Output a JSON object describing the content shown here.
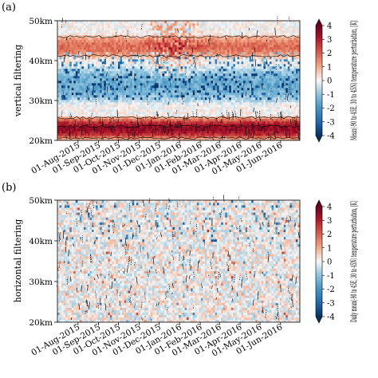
{
  "chart_data": [
    {
      "type": "heatmap",
      "panel_label": "(a)",
      "ylabel": "vertical filtering",
      "y_ticks": [
        "20km",
        "30km",
        "40km",
        "50km"
      ],
      "y_values_km": [
        20,
        30,
        40,
        50
      ],
      "x_ticks": [
        "01-Aug-2015",
        "01-Sep-2015",
        "01-Oct-2015",
        "01-Nov-2015",
        "01-Dec-2015",
        "01-Jan-2016",
        "01-Feb-2016",
        "01-Mar-2016",
        "01-Apr-2016",
        "01-May-2016",
        "01-Jun-2016"
      ],
      "x_range": [
        "2015-07-01",
        "2016-06-30"
      ],
      "ylim": [
        20,
        50
      ],
      "colorbar_label": "Mean(-90 to 45E, 30 to 45N) temperature perturbation, [K]",
      "colorbar_ticks": [
        "4",
        "3",
        "2",
        "1",
        "0",
        "-1",
        "-2",
        "-3",
        "-4"
      ],
      "clim": [
        -4,
        4
      ],
      "colormap": "RdBu_r",
      "layers": [
        {
          "z_km": [
            20.5,
            25.5
          ],
          "amplitude": 3.4,
          "description": "strong positive band"
        },
        {
          "z_km": [
            41,
            46
          ],
          "amplitude": 1.8,
          "description": "positive band"
        },
        {
          "z_km": [
            30,
            38
          ],
          "amplitude": -1.5,
          "description": "negative band"
        }
      ]
    },
    {
      "type": "heatmap",
      "panel_label": "(b)",
      "ylabel": "horizontal filtering",
      "y_ticks": [
        "20km",
        "30km",
        "40km",
        "50km"
      ],
      "y_values_km": [
        20,
        30,
        40,
        50
      ],
      "x_ticks": [
        "01-Aug-2015",
        "01-Sep-2015",
        "01-Oct-2015",
        "01-Nov-2015",
        "01-Dec-2015",
        "01-Jan-2016",
        "01-Feb-2016",
        "01-Mar-2016",
        "01-Apr-2016",
        "01-May-2016",
        "01-Jun-2016"
      ],
      "x_range": [
        "2015-07-01",
        "2016-06-30"
      ],
      "ylim": [
        20,
        50
      ],
      "colorbar_label": "Daily mean(-90 to 45E, 30 to 45N) temperature perturbation, [K]",
      "colorbar_ticks": [
        "4",
        "3",
        "2",
        "1",
        "0",
        "-1",
        "-2",
        "-3",
        "-4"
      ],
      "clim": [
        -4,
        4
      ],
      "colormap": "RdBu_r",
      "layers": []
    }
  ]
}
